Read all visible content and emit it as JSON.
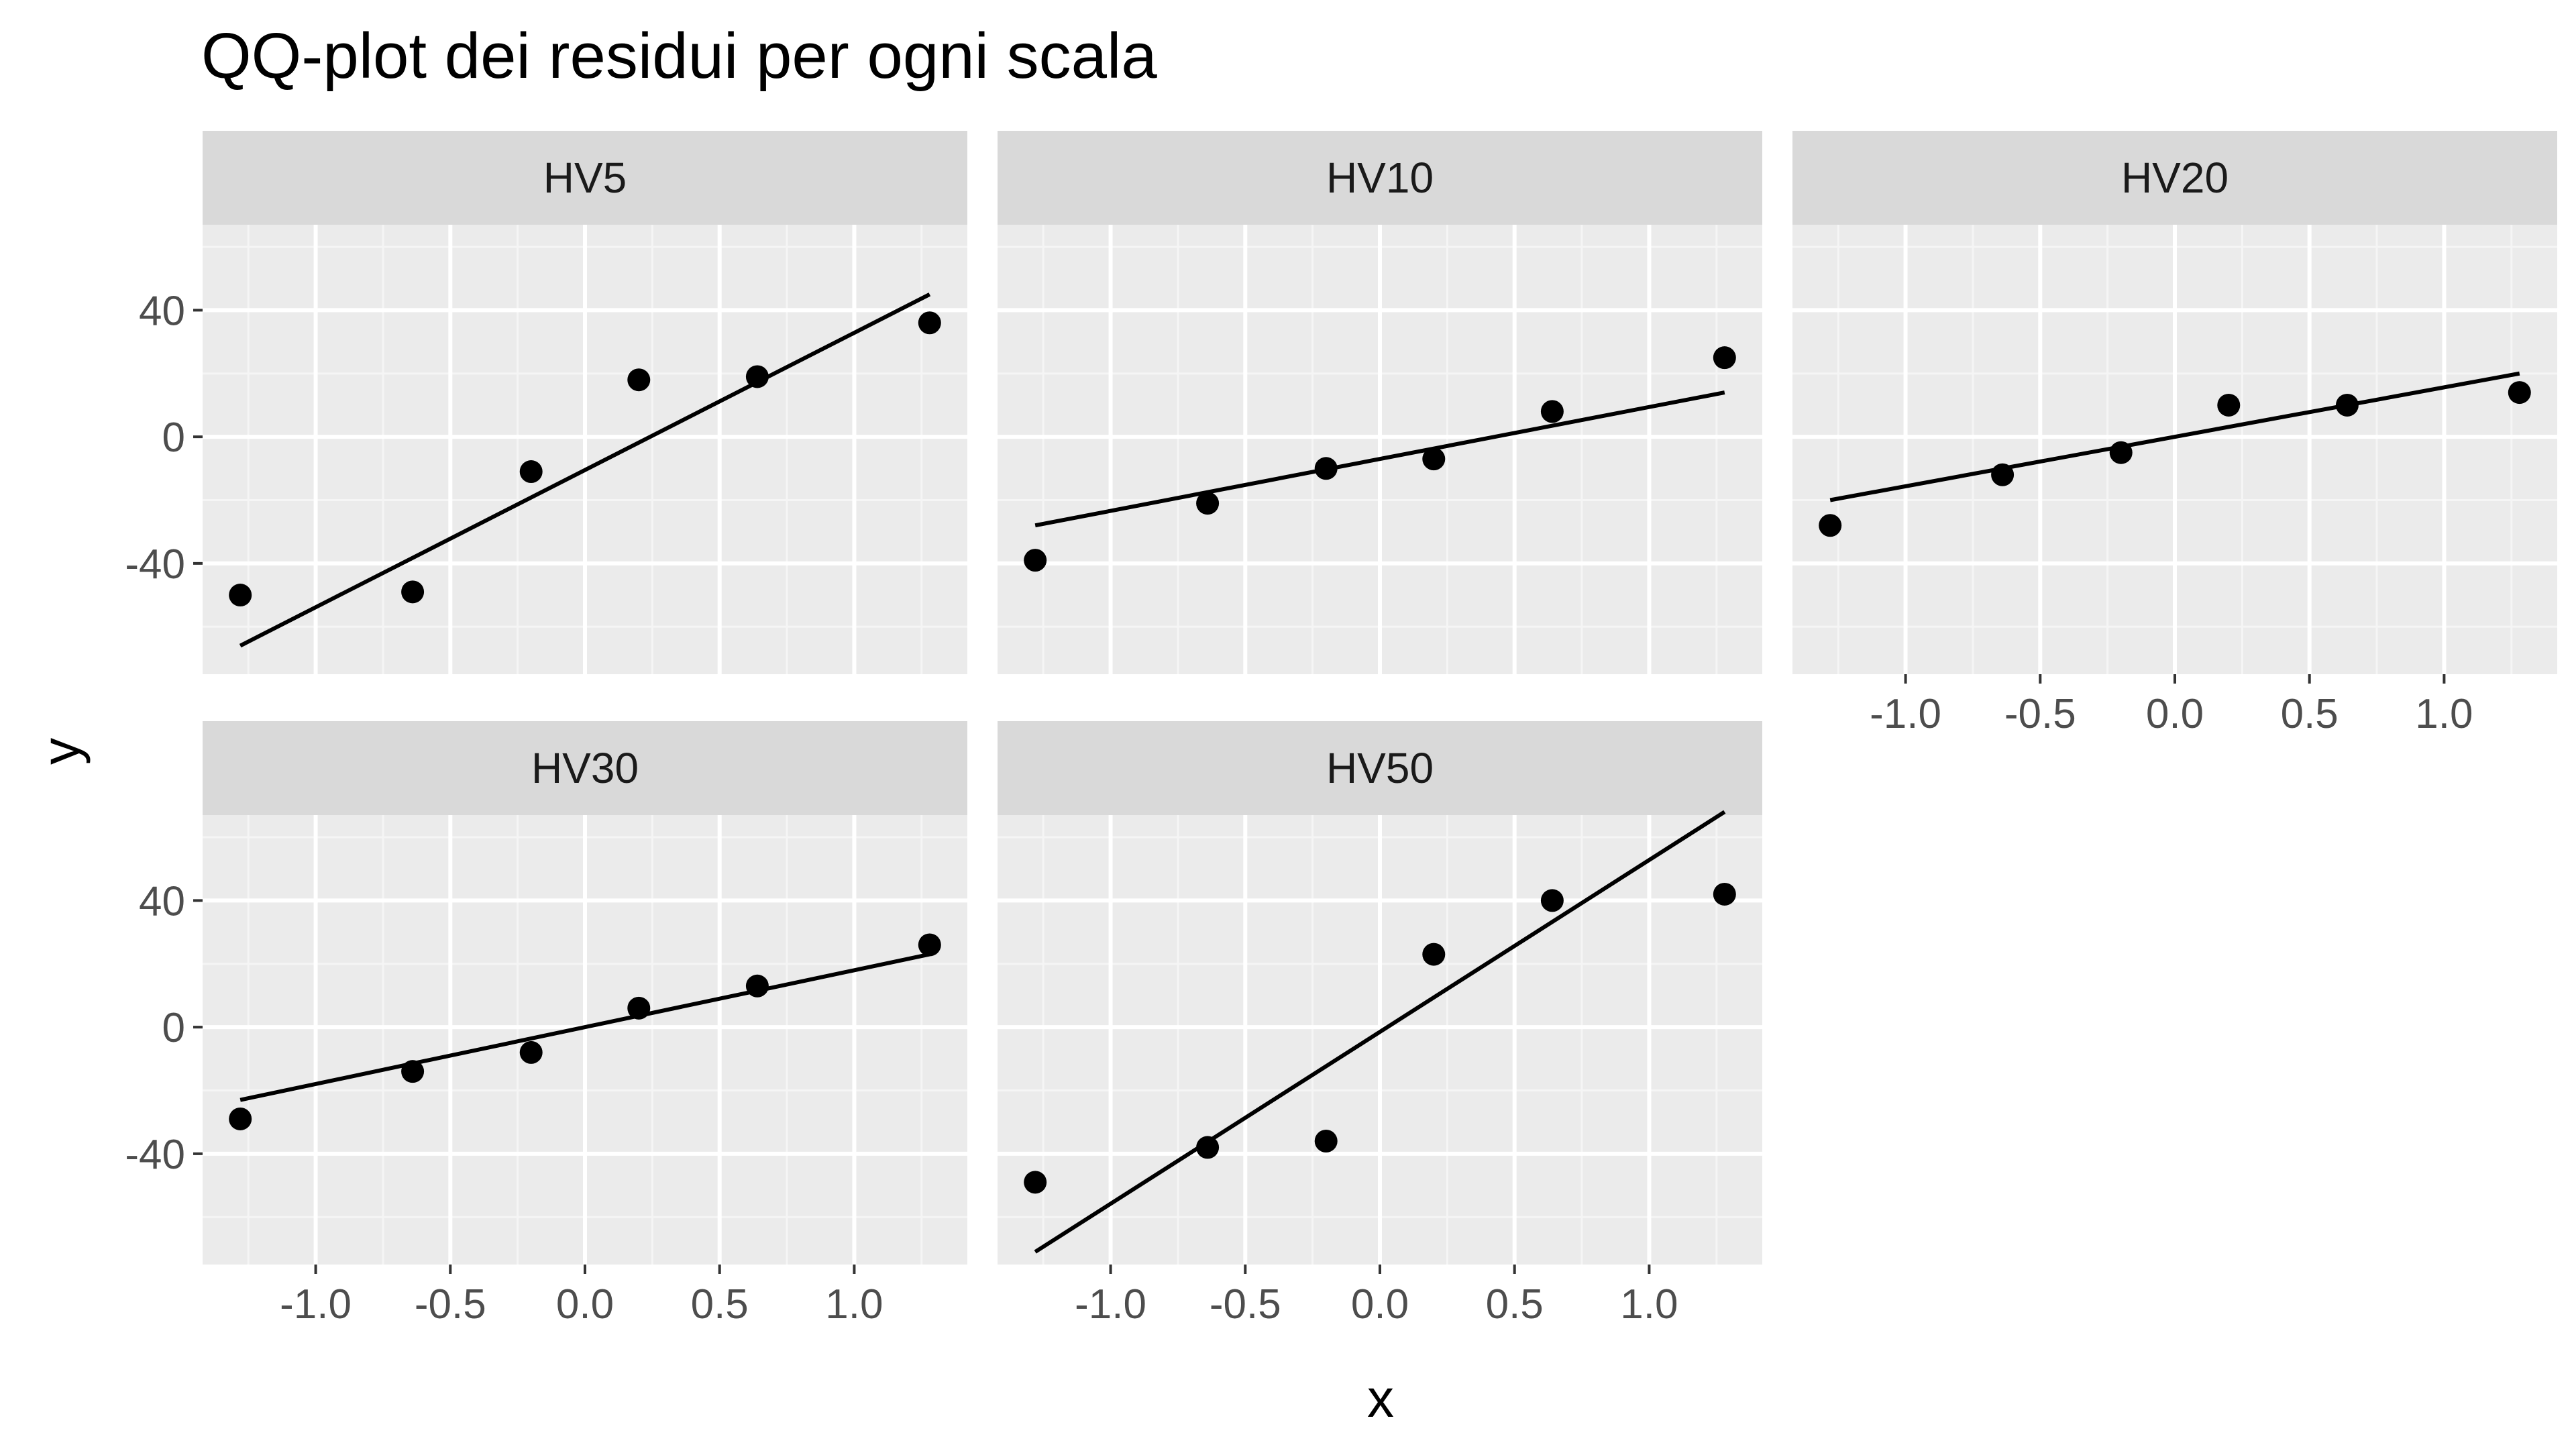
{
  "chart_data": {
    "type": "scatter",
    "title": "QQ-plot dei residui per ogni scala",
    "xlabel": "x",
    "ylabel": "y",
    "xlim": [
      -1.42,
      1.42
    ],
    "ylim": [
      -75,
      67
    ],
    "x_ticks": [
      -1.0,
      -0.5,
      0.0,
      0.5,
      1.0
    ],
    "x_tick_labels": [
      "-1.0",
      "-0.5",
      "0.0",
      "0.5",
      "1.0"
    ],
    "y_ticks": [
      -40,
      0,
      40
    ],
    "y_tick_labels": [
      "-40",
      "0",
      "40"
    ],
    "grid": true,
    "panels": [
      {
        "name": "HV5",
        "points": [
          {
            "x": -1.28,
            "y": -50
          },
          {
            "x": -0.64,
            "y": -49
          },
          {
            "x": -0.2,
            "y": -11
          },
          {
            "x": 0.2,
            "y": 18
          },
          {
            "x": 0.64,
            "y": 19
          },
          {
            "x": 1.28,
            "y": 36
          }
        ],
        "line": {
          "x": [
            -1.28,
            1.28
          ],
          "y": [
            -66,
            45
          ]
        }
      },
      {
        "name": "HV10",
        "points": [
          {
            "x": -1.28,
            "y": -39
          },
          {
            "x": -0.64,
            "y": -21
          },
          {
            "x": -0.2,
            "y": -10
          },
          {
            "x": 0.2,
            "y": -7
          },
          {
            "x": 0.64,
            "y": 8
          },
          {
            "x": 1.28,
            "y": 25
          }
        ],
        "line": {
          "x": [
            -1.28,
            1.28
          ],
          "y": [
            -28,
            14
          ]
        }
      },
      {
        "name": "HV20",
        "points": [
          {
            "x": -1.28,
            "y": -28
          },
          {
            "x": -0.64,
            "y": -12
          },
          {
            "x": -0.2,
            "y": -5
          },
          {
            "x": 0.2,
            "y": 10
          },
          {
            "x": 0.64,
            "y": 10
          },
          {
            "x": 1.28,
            "y": 14
          }
        ],
        "line": {
          "x": [
            -1.28,
            1.28
          ],
          "y": [
            -20,
            20
          ]
        }
      },
      {
        "name": "HV30",
        "points": [
          {
            "x": -1.28,
            "y": -29
          },
          {
            "x": -0.64,
            "y": -14
          },
          {
            "x": -0.2,
            "y": -8
          },
          {
            "x": 0.2,
            "y": 6
          },
          {
            "x": 0.64,
            "y": 13
          },
          {
            "x": 1.28,
            "y": 26
          }
        ],
        "line": {
          "x": [
            -1.28,
            1.28
          ],
          "y": [
            -23,
            23
          ]
        }
      },
      {
        "name": "HV50",
        "points": [
          {
            "x": -1.28,
            "y": -49
          },
          {
            "x": -0.64,
            "y": -38
          },
          {
            "x": -0.2,
            "y": -36
          },
          {
            "x": 0.2,
            "y": 23
          },
          {
            "x": 0.64,
            "y": 40
          },
          {
            "x": 1.28,
            "y": 42
          }
        ],
        "line": {
          "x": [
            -1.28,
            1.28
          ],
          "y": [
            -71,
            68
          ]
        }
      }
    ]
  }
}
